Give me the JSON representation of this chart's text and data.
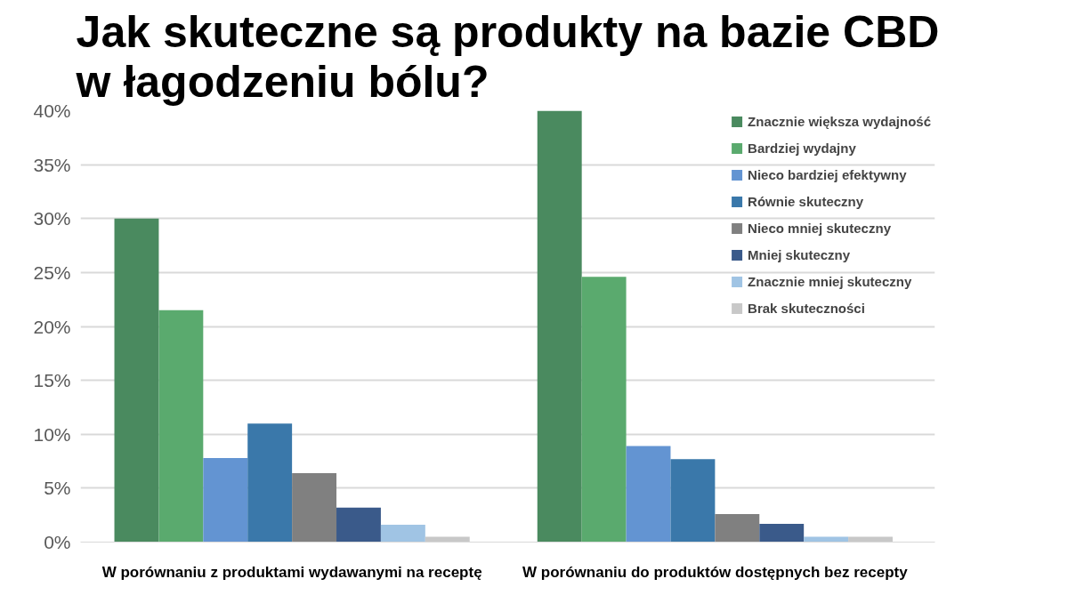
{
  "chart_data": {
    "type": "bar",
    "title": "Jak skuteczne są produkty na bazie CBD w łagodzeniu bólu?",
    "categories": [
      "W porównaniu z produktami wydawanymi na receptę",
      "W porównaniu do produktów dostępnych bez recepty"
    ],
    "series": [
      {
        "name": "Znacznie większa wydajność",
        "color": "#4a8a5f",
        "values": [
          30,
          40
        ]
      },
      {
        "name": "Bardziej wydajny",
        "color": "#5aaa6e",
        "values": [
          21.5,
          24.6
        ]
      },
      {
        "name": "Nieco bardziej efektywny",
        "color": "#6394d2",
        "values": [
          7.8,
          8.9
        ]
      },
      {
        "name": "Równie skuteczny",
        "color": "#3a78aa",
        "values": [
          11,
          7.7
        ]
      },
      {
        "name": "Nieco mniej skuteczny",
        "color": "#808080",
        "values": [
          6.4,
          2.6
        ]
      },
      {
        "name": "Mniej skuteczny",
        "color": "#3a5a8a",
        "values": [
          3.2,
          1.7
        ]
      },
      {
        "name": "Znacznie mniej skuteczny",
        "color": "#a0c4e4",
        "values": [
          1.6,
          0.5
        ]
      },
      {
        "name": "Brak skuteczności",
        "color": "#c8c8c8",
        "values": [
          0.5,
          0.5
        ]
      }
    ],
    "ylim": [
      0,
      40
    ],
    "yticks": [
      {
        "value": 0,
        "label": "0%"
      },
      {
        "value": 5,
        "label": "5%"
      },
      {
        "value": 10,
        "label": "10%"
      },
      {
        "value": 15,
        "label": "15%"
      },
      {
        "value": 20,
        "label": "20%"
      },
      {
        "value": 25,
        "label": "25%"
      },
      {
        "value": 30,
        "label": "30%"
      },
      {
        "value": 35,
        "label": "35%"
      },
      {
        "value": 40,
        "label": "40%"
      }
    ],
    "grid": "y",
    "legend": "top right"
  }
}
